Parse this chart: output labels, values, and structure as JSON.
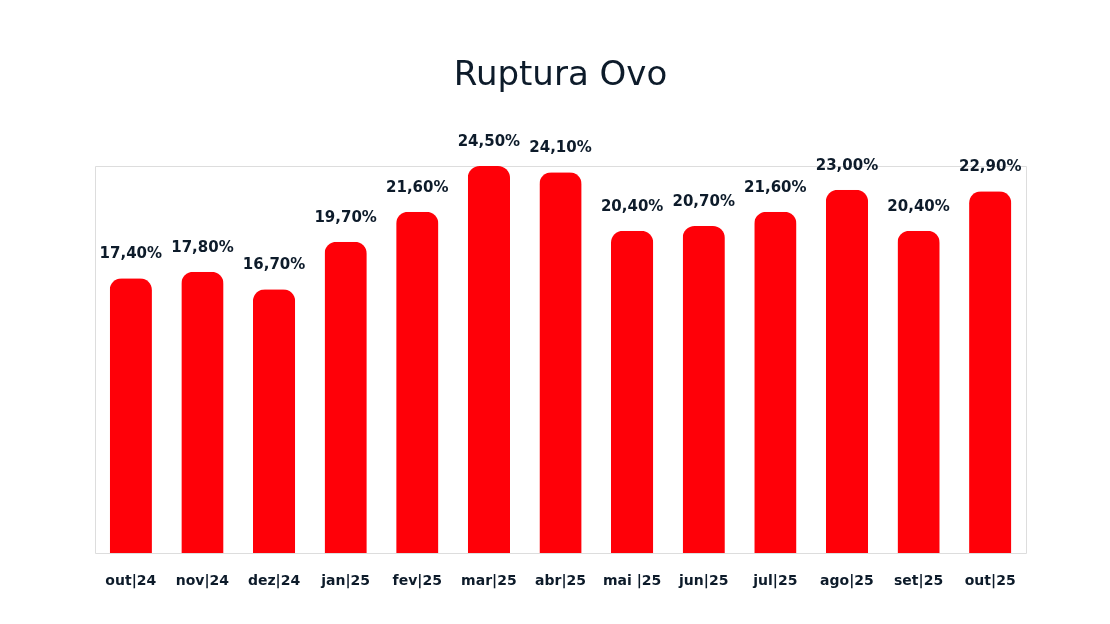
{
  "chart_data": {
    "type": "bar",
    "title": "Ruptura Ovo",
    "categories": [
      "out|24",
      "nov|24",
      "dez|24",
      "jan|25",
      "fev|25",
      "mar|25",
      "abr|25",
      "mai |25",
      "jun|25",
      "jul|25",
      "ago|25",
      "set|25",
      "out|25"
    ],
    "values": [
      17.4,
      17.8,
      16.7,
      19.7,
      21.6,
      24.5,
      24.1,
      20.4,
      20.7,
      21.6,
      23.0,
      20.4,
      22.9
    ],
    "value_labels": [
      "17,40%",
      "17,80%",
      "16,70%",
      "19,70%",
      "21,60%",
      "24,50%",
      "24,10%",
      "20,40%",
      "20,70%",
      "21,60%",
      "23,00%",
      "20,40%",
      "22,90%"
    ],
    "color": "#ff0008"
  }
}
